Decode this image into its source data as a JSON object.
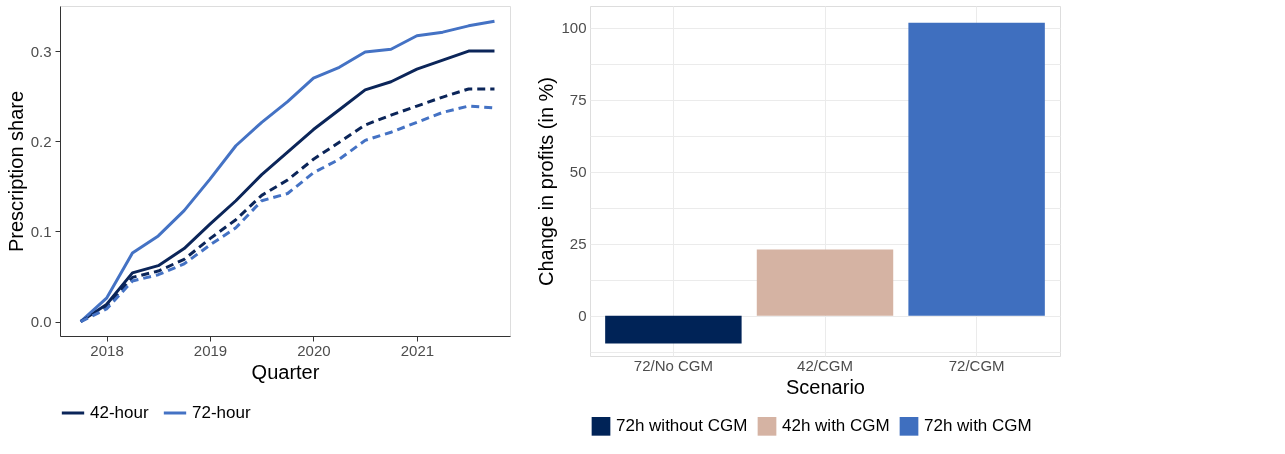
{
  "chart_data": [
    {
      "type": "line",
      "xlabel": "Quarter",
      "ylabel": "Prescription share",
      "legend": "bottom",
      "grid": false,
      "x": [
        2017.75,
        2018,
        2018.25,
        2018.5,
        2018.75,
        2019,
        2019.25,
        2019.5,
        2019.75,
        2020,
        2020.25,
        2020.5,
        2020.75,
        2021,
        2021.25,
        2021.5,
        2021.75
      ],
      "xlim": [
        2017.55,
        2021.9
      ],
      "xticks": [
        2018,
        2019,
        2020,
        2021
      ],
      "ylim": [
        -0.016,
        0.35
      ],
      "yticks": [
        {
          "value": 0,
          "label": "0.0"
        },
        0.1,
        0.2,
        0.3
      ],
      "series": [
        {
          "name": "42-hour",
          "color": "#0b2559",
          "line_style": "solid",
          "values": [
            0,
            0.019,
            0.054,
            0.062,
            0.081,
            0.108,
            0.134,
            0.163,
            0.188,
            0.213,
            0.235,
            0.257,
            0.266,
            0.28,
            0.29,
            0.3,
            0.3
          ]
        },
        {
          "name": "72-hour",
          "color": "#4472c4",
          "line_style": "solid",
          "values": [
            0,
            0.026,
            0.076,
            0.095,
            0.123,
            0.158,
            0.195,
            0.221,
            0.244,
            0.27,
            0.282,
            0.299,
            0.302,
            0.317,
            0.321,
            0.328,
            0.333
          ]
        },
        {
          "color": "#0b2559",
          "line_style": "dashed",
          "values": [
            0,
            0.017,
            0.049,
            0.056,
            0.069,
            0.092,
            0.113,
            0.14,
            0.157,
            0.18,
            0.199,
            0.218,
            0.229,
            0.239,
            0.249,
            0.258,
            0.258
          ]
        },
        {
          "color": "#4472c4",
          "line_style": "dashed",
          "values": [
            0,
            0.014,
            0.045,
            0.052,
            0.064,
            0.085,
            0.104,
            0.134,
            0.142,
            0.165,
            0.18,
            0.201,
            0.21,
            0.221,
            0.232,
            0.239,
            0.237
          ]
        }
      ]
    },
    {
      "type": "bar",
      "xlabel": "Scenario",
      "ylabel": "Change in profits (in %)",
      "legend": "bottom",
      "grid": true,
      "categories": [
        "72/No CGM",
        "42/CGM",
        "72/CGM"
      ],
      "ylim": [
        -14,
        107.5
      ],
      "yticks": [
        {
          "value": -12.5,
          "label": null
        },
        0,
        {
          "value": 12.5,
          "label": null
        },
        25,
        {
          "value": 37.5,
          "label": null
        },
        50,
        {
          "value": 62.5,
          "label": null
        },
        75,
        {
          "value": 87.5,
          "label": null
        },
        100
      ],
      "series": [
        {
          "name": "72h without CGM",
          "color": "#002357",
          "values": [
            -9.7,
            null,
            null
          ]
        },
        {
          "name": "42h with CGM",
          "color": "#d5b3a3",
          "values": [
            null,
            23.0,
            null
          ]
        },
        {
          "name": "72h with CGM",
          "color": "#3f6fbf",
          "values": [
            null,
            null,
            101.7
          ]
        }
      ]
    }
  ]
}
